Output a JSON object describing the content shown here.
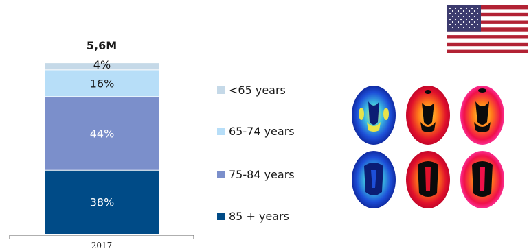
{
  "chart_data": {
    "type": "bar",
    "stacked": true,
    "categories": [
      "2017"
    ],
    "total_label": "5,6M",
    "series": [
      {
        "name": "85 + years",
        "values": [
          38
        ],
        "label": "38%",
        "color": "#004B87",
        "label_color": "#ffffff"
      },
      {
        "name": "75-84 years",
        "values": [
          44
        ],
        "label": "44%",
        "color": "#7B8FCB",
        "label_color": "#ffffff"
      },
      {
        "name": "65-74 years",
        "values": [
          16
        ],
        "label": "16%",
        "color": "#B7DEF8",
        "label_color": "#1a1a1a"
      },
      {
        "name": "<65 years",
        "values": [
          4
        ],
        "label": "4%",
        "color": "#C5D9E8",
        "label_color": "#1a1a1a"
      }
    ],
    "ylim": [
      0,
      100
    ],
    "grid": false,
    "legend_position": "right"
  },
  "legend": [
    {
      "label": "<65 years",
      "color": "#C5D9E8"
    },
    {
      "label": "65-74 years",
      "color": "#B7DEF8"
    },
    {
      "label": "75-84 years",
      "color": "#7B8FCB"
    },
    {
      "label": "85 + years",
      "color": "#004B87"
    }
  ],
  "images": {
    "flag": "us-flag-icon",
    "brain_scans": "brain-scan-images"
  }
}
